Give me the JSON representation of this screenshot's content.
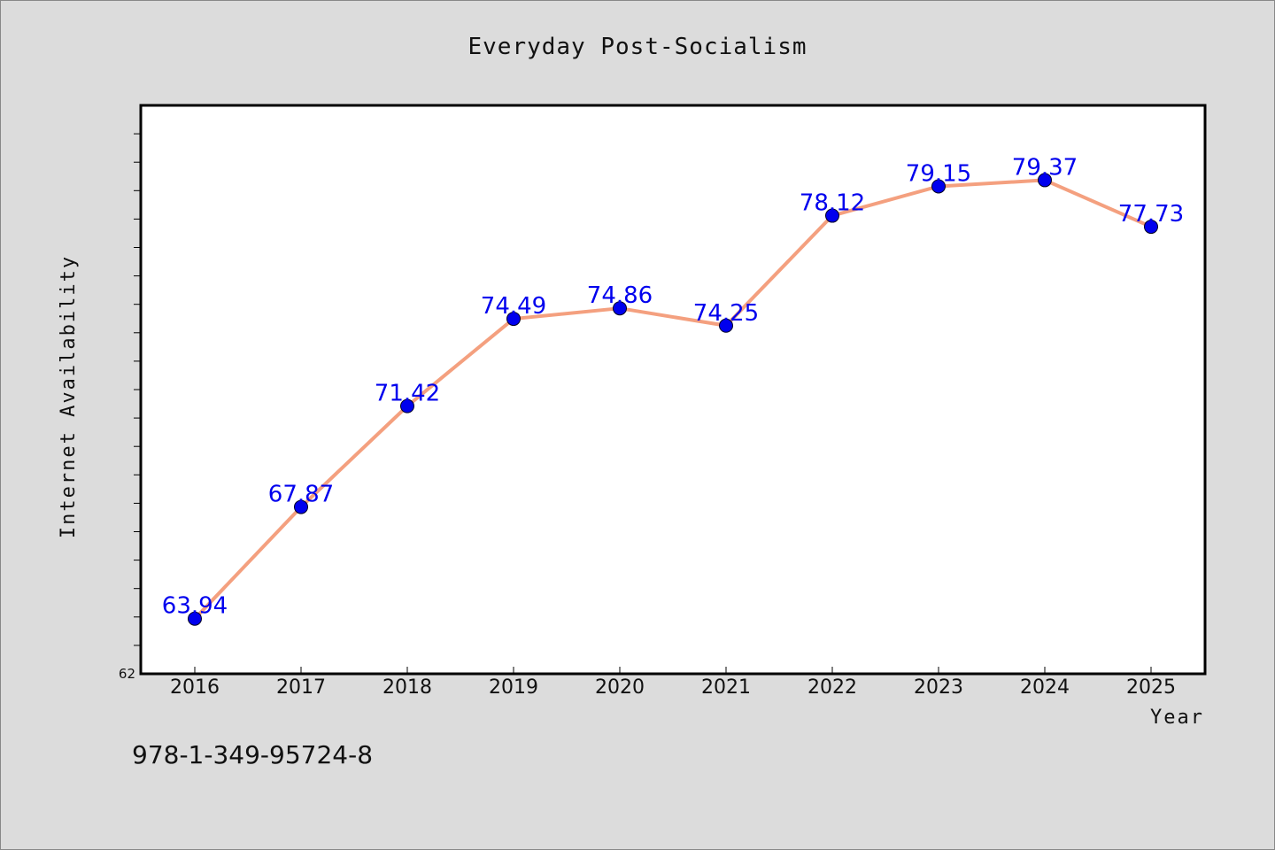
{
  "chart_data": {
    "type": "line",
    "title": "Everyday Post-Socialism",
    "xlabel": "Year",
    "ylabel": "Internet Availability",
    "ymin_label": "62",
    "categories": [
      "2016",
      "2017",
      "2018",
      "2019",
      "2020",
      "2021",
      "2022",
      "2023",
      "2024",
      "2025"
    ],
    "series": [
      {
        "values": [
          63.94,
          67.87,
          71.42,
          74.49,
          74.86,
          74.25,
          78.12,
          79.15,
          79.37,
          77.73
        ],
        "labels": [
          "63.94",
          "67.87",
          "71.42",
          "74.49",
          "74.86",
          "74.25",
          "78.12",
          "79.15",
          "79.37",
          "77.73"
        ],
        "line_color": "#f4a07f",
        "marker_color": "#0000ee"
      }
    ],
    "ylim": [
      62,
      82
    ],
    "grid": false,
    "legend": "none"
  },
  "footer": {
    "isbn": "978-1-349-95724-8"
  },
  "colors": {
    "background": "#dcdcdc",
    "plot_background": "#ffffff",
    "line": "#f4a07f",
    "marker": "#0000ee",
    "label": "#0000ee"
  }
}
